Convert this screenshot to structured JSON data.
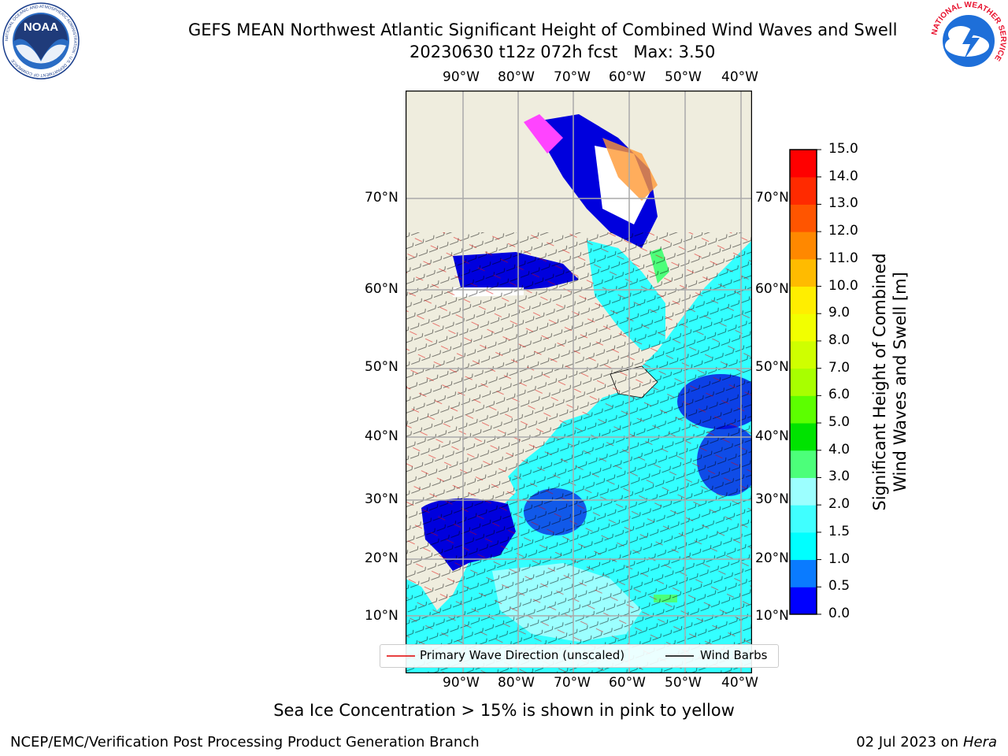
{
  "title": {
    "line1": "GEFS MEAN Northwest Atlantic Significant Height of Combined Wind Waves and Swell",
    "line2": "20230630 t12z 072h fcst   Max: 3.50"
  },
  "subtitle": "Sea Ice Concentration > 15% is shown in pink to yellow",
  "footer": {
    "left": "NCEP/EMC/Verification Post Processing Product Generation Branch",
    "right_date": "02 Jul 2023 on ",
    "right_host": "Hera"
  },
  "map": {
    "lon_labels": [
      "90°W",
      "80°W",
      "70°W",
      "60°W",
      "50°W",
      "40°W"
    ],
    "lat_labels": [
      "70°N",
      "60°N",
      "50°N",
      "40°N",
      "30°N",
      "20°N",
      "10°N"
    ],
    "land_color": "#efedde",
    "ocean_color": "#33ffff",
    "low_wave_color": "#0000dd",
    "ice_colors": [
      "#ff44ff",
      "#ff9933",
      "#ffffff"
    ]
  },
  "colorbar": {
    "title": "Significant Height of Combined Wind Waves and Swell [m]",
    "ticks": [
      "0.0",
      "0.5",
      "1.0",
      "1.5",
      "2.0",
      "3.0",
      "4.0",
      "5.0",
      "6.0",
      "7.0",
      "8.0",
      "9.0",
      "10.0",
      "11.0",
      "12.0",
      "13.0",
      "14.0",
      "15.0"
    ],
    "colors": [
      "#0000ff",
      "#0a7bff",
      "#00ffff",
      "#40ffff",
      "#9cffff",
      "#4cff7a",
      "#00e300",
      "#5cff00",
      "#a8ff00",
      "#cfff00",
      "#f2ff00",
      "#ffee00",
      "#ffbb00",
      "#ff8800",
      "#ff5500",
      "#ff2a00",
      "#ff0000"
    ]
  },
  "legend": {
    "primary": "Primary Wave Direction (unscaled)",
    "barbs": "Wind Barbs"
  },
  "logos": {
    "noaa_text": "NOAA",
    "noaa_ring": "NATIONAL OCEANIC AND ATMOSPHERIC ADMINISTRATION · U.S. DEPARTMENT OF COMMERCE",
    "nws_ring": "NATIONAL WEATHER SERVICE"
  }
}
